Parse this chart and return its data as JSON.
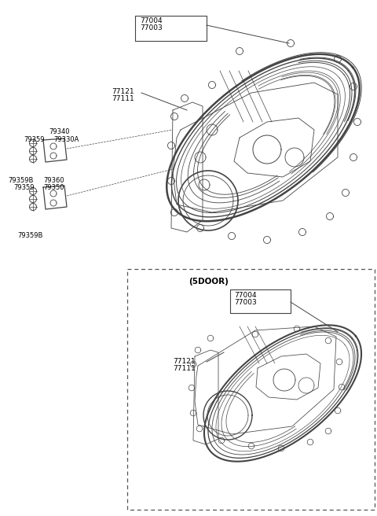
{
  "bg_color": "#ffffff",
  "line_color": "#444444",
  "text_color": "#000000",
  "fig_width": 4.8,
  "fig_height": 6.56,
  "dpi": 100,
  "upper": {
    "label_77004": "77004",
    "label_77003": "77003",
    "label_77121": "77121",
    "label_77111": "77111",
    "label_79340": "79340",
    "label_79359a": "79359",
    "label_79330A": "79330A",
    "label_79359B1": "79359B",
    "label_79360": "79360",
    "label_79359b": "79359",
    "label_79350": "79350",
    "label_79359B2": "79359B"
  },
  "lower": {
    "label_5door": "(5DOOR)",
    "label_77004": "77004",
    "label_77003": "77003",
    "label_77121": "77121",
    "label_77111": "77111"
  }
}
